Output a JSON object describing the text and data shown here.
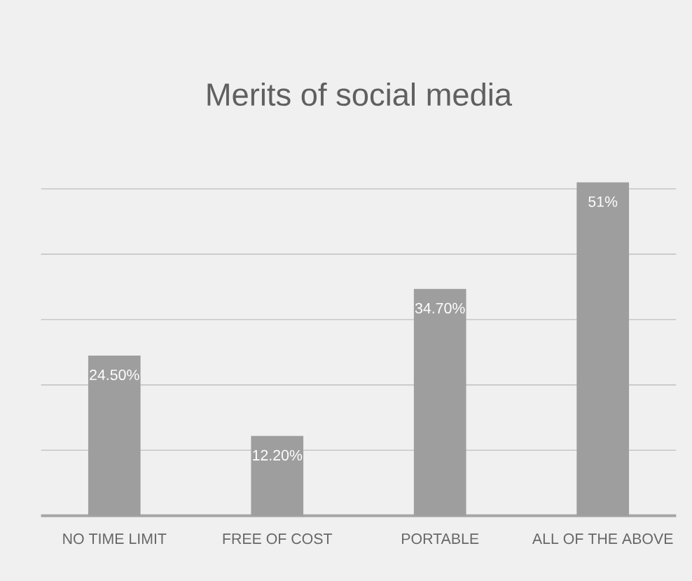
{
  "chart_data": {
    "type": "bar",
    "title": "Merits of social media",
    "categories": [
      "NO TIME LIMIT",
      "FREE OF COST",
      "PORTABLE",
      "ALL OF THE ABOVE"
    ],
    "values": [
      24.5,
      12.2,
      34.7,
      51
    ],
    "value_labels": [
      "24.50%",
      "12.20%",
      "34.70%",
      "51%"
    ],
    "color": "#9e9e9e",
    "tick_labels": "x",
    "grid": "y"
  }
}
